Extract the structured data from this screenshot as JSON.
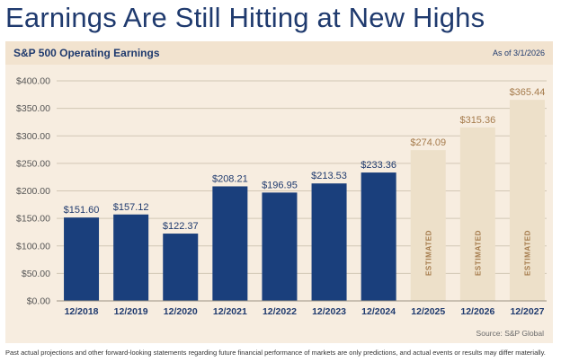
{
  "page": {
    "title": "Earnings Are Still Hitting at New Highs",
    "panel_title": "S&P 500 Operating Earnings",
    "as_of": "As of 3/1/2026",
    "source": "Source: S&P Global",
    "disclaimer": "Past actual projections and other forward-looking statements regarding future financial performance of markets are only predictions, and actual events or results may differ materially."
  },
  "colors": {
    "actual": "#1a3f7c",
    "estimated": "#ede0c9",
    "estimated_label": "#a57b4c",
    "label": "#1f3a6e",
    "grid": "#d2c7b5",
    "tick": "#555555"
  },
  "chart_data": {
    "type": "bar",
    "title": "S&P 500 Operating Earnings",
    "xlabel": "",
    "ylabel": "",
    "ylim": [
      0,
      400
    ],
    "yticks": [
      "$0.00",
      "$50.00",
      "$100.00",
      "$150.00",
      "$200.00",
      "$250.00",
      "$300.00",
      "$350.00",
      "$400.00"
    ],
    "ytick_values": [
      0,
      50,
      100,
      150,
      200,
      250,
      300,
      350,
      400
    ],
    "categories": [
      "12/2018",
      "12/2019",
      "12/2020",
      "12/2021",
      "12/2022",
      "12/2023",
      "12/2024",
      "12/2025",
      "12/2026",
      "12/2027"
    ],
    "values": [
      151.6,
      157.12,
      122.37,
      208.21,
      196.95,
      213.53,
      233.36,
      274.09,
      315.36,
      365.44
    ],
    "value_labels": [
      "$151.60",
      "$157.12",
      "$122.37",
      "$208.21",
      "$196.95",
      "$213.53",
      "$233.36",
      "$274.09",
      "$315.36",
      "$365.44"
    ],
    "estimated": [
      false,
      false,
      false,
      false,
      false,
      false,
      false,
      true,
      true,
      true
    ],
    "estimated_label": "ESTIMATED",
    "grid": true
  }
}
